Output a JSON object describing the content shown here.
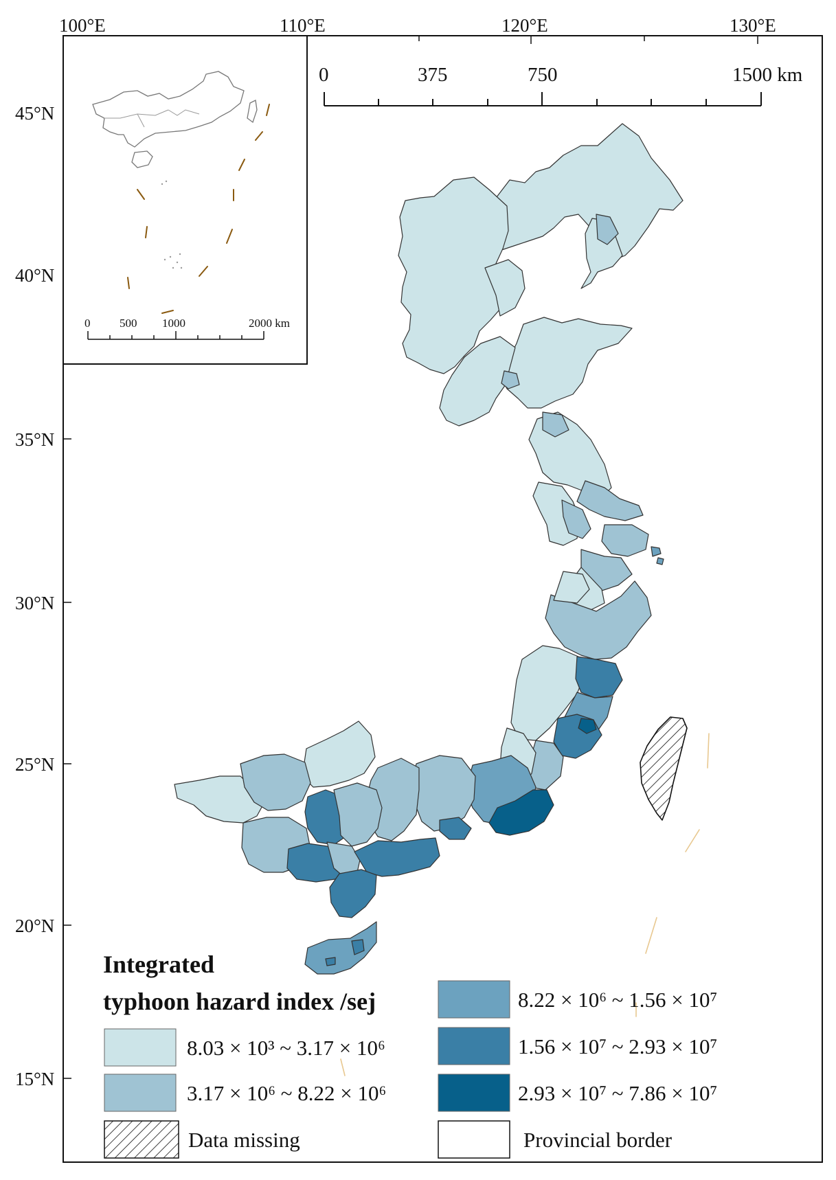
{
  "map": {
    "lon_ticks": [
      "100°E",
      "110°E",
      "120°E",
      "130°E"
    ],
    "lat_ticks": [
      "45°N",
      "40°N",
      "35°N",
      "30°N",
      "25°N",
      "20°N",
      "15°N"
    ],
    "scale_bar": {
      "labels": [
        "0",
        "375",
        "750",
        "1500 km"
      ]
    },
    "inset": {
      "scale_bar": {
        "labels": [
          "0",
          "500",
          "1000",
          "2000 km"
        ]
      }
    }
  },
  "legend": {
    "title_line1": "Integrated",
    "title_line2": "typhoon hazard index /sej",
    "classes": [
      {
        "label": "8.03 × 10³ ~ 3.17 × 10⁶",
        "color": "#cce4e8"
      },
      {
        "label": "3.17 × 10⁶ ~ 8.22 × 10⁶",
        "color": "#9fc3d3"
      },
      {
        "label": "8.22 × 10⁶ ~ 1.56 × 10⁷",
        "color": "#6ca2bf"
      },
      {
        "label": "1.56 × 10⁷ ~ 2.93 × 10⁷",
        "color": "#3a7fa6"
      },
      {
        "label": "2.93 × 10⁷ ~ 7.86 × 10⁷",
        "color": "#07608a"
      }
    ],
    "data_missing": "Data missing",
    "provincial_border": "Provincial border"
  }
}
